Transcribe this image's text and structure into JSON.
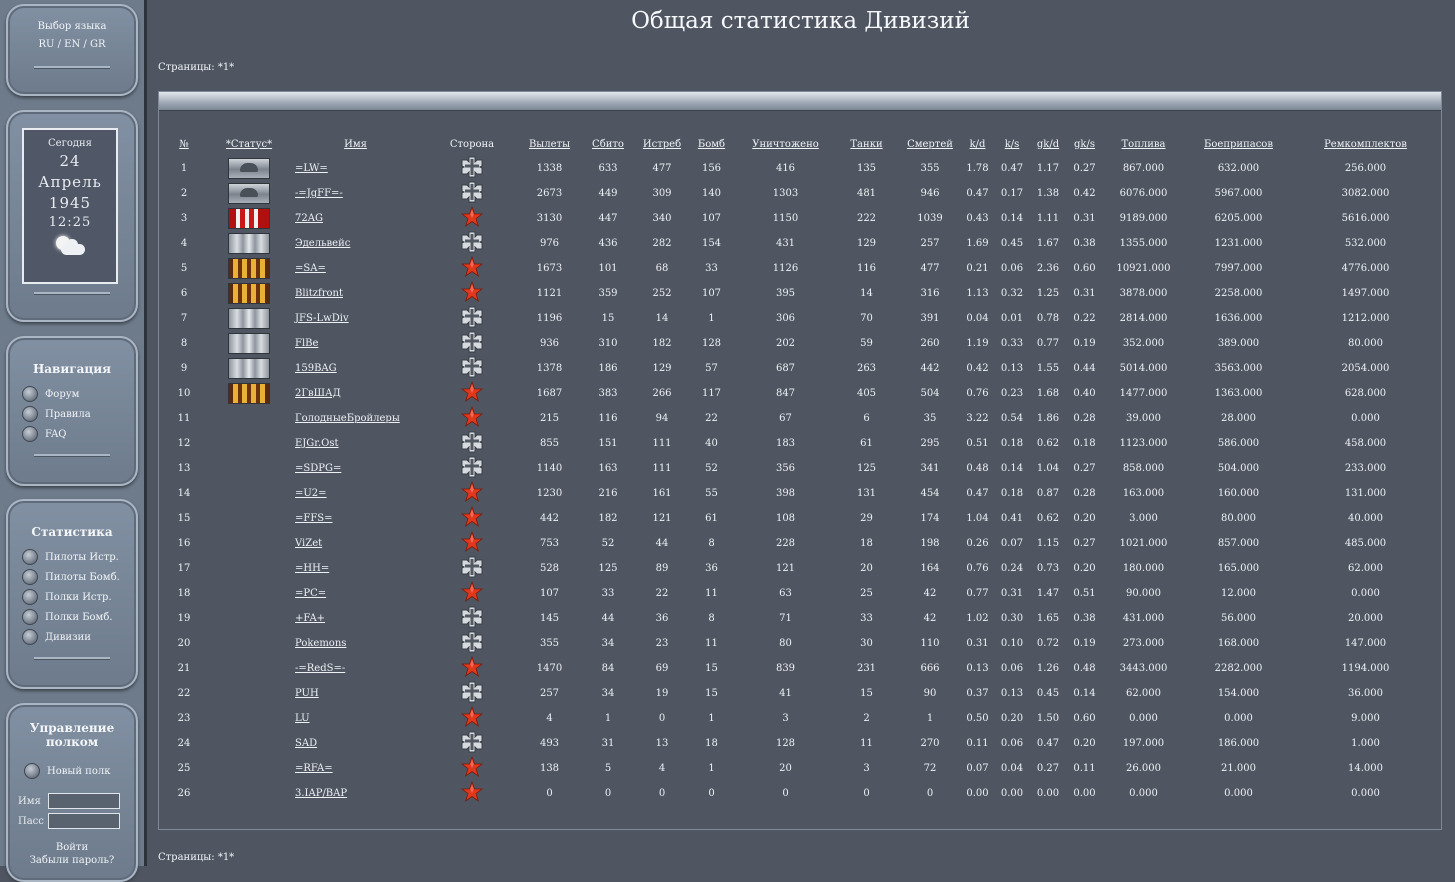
{
  "sidebar": {
    "lang_title": "Выбор языка",
    "lang_links": "RU / EN / GR",
    "today_label": "Сегодня",
    "day": "24",
    "month": "Апрель",
    "year": "1945",
    "time": "12:25",
    "nav_title": "Навигация",
    "nav_items": [
      "Форум",
      "Правила",
      "FAQ"
    ],
    "stats_title": "Статистика",
    "stats_items": [
      "Пилоты Истр.",
      "Пилоты Бомб.",
      "Полки Истр.",
      "Полки Бомб.",
      "Дивизии"
    ],
    "regiment_title": "Управление полком",
    "new_regiment": "Новый полк",
    "login_label": "Имя",
    "pass_label": "Пасс",
    "login_button": "Войти",
    "forgot_link": "Забыли пароль?"
  },
  "page": {
    "title": "Общая статистика Дивизий",
    "pages_top": "Страницы: *1*",
    "pages_bottom": "Страницы: *1*"
  },
  "table": {
    "headers": [
      "№",
      "*Статус*",
      "Имя",
      "Сторона",
      "Вылеты",
      "Сбито",
      "Истреб",
      "Бомб",
      "Уничтожено",
      "Танки",
      "Смертей",
      "k/d",
      "k/s",
      "gk/d",
      "gk/s",
      "Топлива",
      "Боеприпасов",
      "Ремкомплектов"
    ],
    "rows": [
      {
        "n": "1",
        "badge": "eagle",
        "name": "=LW=",
        "side": "cross",
        "sorties": "1338",
        "downed": "633",
        "fighters": "477",
        "bombers": "156",
        "destroyed": "416",
        "tanks": "135",
        "deaths": "355",
        "kd": "1.78",
        "ks": "0.47",
        "gkd": "1.17",
        "gks": "0.27",
        "fuel": "867.000",
        "ammo": "632.000",
        "repair": "256.000"
      },
      {
        "n": "2",
        "badge": "eagle",
        "name": "-=JgFF=-",
        "side": "cross",
        "sorties": "2673",
        "downed": "449",
        "fighters": "309",
        "bombers": "140",
        "destroyed": "1303",
        "tanks": "481",
        "deaths": "946",
        "kd": "0.47",
        "ks": "0.17",
        "gkd": "1.38",
        "gks": "0.42",
        "fuel": "6076.000",
        "ammo": "5967.000",
        "repair": "3082.000"
      },
      {
        "n": "3",
        "badge": "red",
        "name": "72AG",
        "side": "star",
        "sorties": "3130",
        "downed": "447",
        "fighters": "340",
        "bombers": "107",
        "destroyed": "1150",
        "tanks": "222",
        "deaths": "1039",
        "kd": "0.43",
        "ks": "0.14",
        "gkd": "1.11",
        "gks": "0.31",
        "fuel": "9189.000",
        "ammo": "6205.000",
        "repair": "5616.000"
      },
      {
        "n": "4",
        "badge": "silver",
        "name": "Эдельвейс",
        "side": "cross",
        "sorties": "976",
        "downed": "436",
        "fighters": "282",
        "bombers": "154",
        "destroyed": "431",
        "tanks": "129",
        "deaths": "257",
        "kd": "1.69",
        "ks": "0.45",
        "gkd": "1.67",
        "gks": "0.38",
        "fuel": "1355.000",
        "ammo": "1231.000",
        "repair": "532.000"
      },
      {
        "n": "5",
        "badge": "gold",
        "name": "=SA=",
        "side": "star",
        "sorties": "1673",
        "downed": "101",
        "fighters": "68",
        "bombers": "33",
        "destroyed": "1126",
        "tanks": "116",
        "deaths": "477",
        "kd": "0.21",
        "ks": "0.06",
        "gkd": "2.36",
        "gks": "0.60",
        "fuel": "10921.000",
        "ammo": "7997.000",
        "repair": "4776.000"
      },
      {
        "n": "6",
        "badge": "gold",
        "name": "Blitzfront",
        "side": "star",
        "sorties": "1121",
        "downed": "359",
        "fighters": "252",
        "bombers": "107",
        "destroyed": "395",
        "tanks": "14",
        "deaths": "316",
        "kd": "1.13",
        "ks": "0.32",
        "gkd": "1.25",
        "gks": "0.31",
        "fuel": "3878.000",
        "ammo": "2258.000",
        "repair": "1497.000"
      },
      {
        "n": "7",
        "badge": "silver",
        "name": "JFS-LwDiv",
        "side": "cross",
        "sorties": "1196",
        "downed": "15",
        "fighters": "14",
        "bombers": "1",
        "destroyed": "306",
        "tanks": "70",
        "deaths": "391",
        "kd": "0.04",
        "ks": "0.01",
        "gkd": "0.78",
        "gks": "0.22",
        "fuel": "2814.000",
        "ammo": "1636.000",
        "repair": "1212.000"
      },
      {
        "n": "8",
        "badge": "silver",
        "name": "FlBe",
        "side": "cross",
        "sorties": "936",
        "downed": "310",
        "fighters": "182",
        "bombers": "128",
        "destroyed": "202",
        "tanks": "59",
        "deaths": "260",
        "kd": "1.19",
        "ks": "0.33",
        "gkd": "0.77",
        "gks": "0.19",
        "fuel": "352.000",
        "ammo": "389.000",
        "repair": "80.000"
      },
      {
        "n": "9",
        "badge": "silver",
        "name": "159BAG",
        "side": "cross",
        "sorties": "1378",
        "downed": "186",
        "fighters": "129",
        "bombers": "57",
        "destroyed": "687",
        "tanks": "263",
        "deaths": "442",
        "kd": "0.42",
        "ks": "0.13",
        "gkd": "1.55",
        "gks": "0.44",
        "fuel": "5014.000",
        "ammo": "3563.000",
        "repair": "2054.000"
      },
      {
        "n": "10",
        "badge": "gold",
        "name": "2ГвШАД",
        "side": "star",
        "sorties": "1687",
        "downed": "383",
        "fighters": "266",
        "bombers": "117",
        "destroyed": "847",
        "tanks": "405",
        "deaths": "504",
        "kd": "0.76",
        "ks": "0.23",
        "gkd": "1.68",
        "gks": "0.40",
        "fuel": "1477.000",
        "ammo": "1363.000",
        "repair": "628.000"
      },
      {
        "n": "11",
        "badge": "",
        "name": "ГолодныеБройлеры",
        "side": "star",
        "sorties": "215",
        "downed": "116",
        "fighters": "94",
        "bombers": "22",
        "destroyed": "67",
        "tanks": "6",
        "deaths": "35",
        "kd": "3.22",
        "ks": "0.54",
        "gkd": "1.86",
        "gks": "0.28",
        "fuel": "39.000",
        "ammo": "28.000",
        "repair": "0.000"
      },
      {
        "n": "12",
        "badge": "",
        "name": "EJGr.Ost",
        "side": "cross",
        "sorties": "855",
        "downed": "151",
        "fighters": "111",
        "bombers": "40",
        "destroyed": "183",
        "tanks": "61",
        "deaths": "295",
        "kd": "0.51",
        "ks": "0.18",
        "gkd": "0.62",
        "gks": "0.18",
        "fuel": "1123.000",
        "ammo": "586.000",
        "repair": "458.000"
      },
      {
        "n": "13",
        "badge": "",
        "name": "=SDPG=",
        "side": "cross",
        "sorties": "1140",
        "downed": "163",
        "fighters": "111",
        "bombers": "52",
        "destroyed": "356",
        "tanks": "125",
        "deaths": "341",
        "kd": "0.48",
        "ks": "0.14",
        "gkd": "1.04",
        "gks": "0.27",
        "fuel": "858.000",
        "ammo": "504.000",
        "repair": "233.000"
      },
      {
        "n": "14",
        "badge": "",
        "name": "=U2=",
        "side": "star",
        "sorties": "1230",
        "downed": "216",
        "fighters": "161",
        "bombers": "55",
        "destroyed": "398",
        "tanks": "131",
        "deaths": "454",
        "kd": "0.47",
        "ks": "0.18",
        "gkd": "0.87",
        "gks": "0.28",
        "fuel": "163.000",
        "ammo": "160.000",
        "repair": "131.000"
      },
      {
        "n": "15",
        "badge": "",
        "name": "=FFS=",
        "side": "star",
        "sorties": "442",
        "downed": "182",
        "fighters": "121",
        "bombers": "61",
        "destroyed": "108",
        "tanks": "29",
        "deaths": "174",
        "kd": "1.04",
        "ks": "0.41",
        "gkd": "0.62",
        "gks": "0.20",
        "fuel": "3.000",
        "ammo": "80.000",
        "repair": "40.000"
      },
      {
        "n": "16",
        "badge": "",
        "name": "ViZet",
        "side": "star",
        "sorties": "753",
        "downed": "52",
        "fighters": "44",
        "bombers": "8",
        "destroyed": "228",
        "tanks": "18",
        "deaths": "198",
        "kd": "0.26",
        "ks": "0.07",
        "gkd": "1.15",
        "gks": "0.27",
        "fuel": "1021.000",
        "ammo": "857.000",
        "repair": "485.000"
      },
      {
        "n": "17",
        "badge": "",
        "name": "=HH=",
        "side": "cross",
        "sorties": "528",
        "downed": "125",
        "fighters": "89",
        "bombers": "36",
        "destroyed": "121",
        "tanks": "20",
        "deaths": "164",
        "kd": "0.76",
        "ks": "0.24",
        "gkd": "0.73",
        "gks": "0.20",
        "fuel": "180.000",
        "ammo": "165.000",
        "repair": "62.000"
      },
      {
        "n": "18",
        "badge": "",
        "name": "=PC=",
        "side": "star",
        "sorties": "107",
        "downed": "33",
        "fighters": "22",
        "bombers": "11",
        "destroyed": "63",
        "tanks": "25",
        "deaths": "42",
        "kd": "0.77",
        "ks": "0.31",
        "gkd": "1.47",
        "gks": "0.51",
        "fuel": "90.000",
        "ammo": "12.000",
        "repair": "0.000"
      },
      {
        "n": "19",
        "badge": "",
        "name": "+FA+",
        "side": "cross",
        "sorties": "145",
        "downed": "44",
        "fighters": "36",
        "bombers": "8",
        "destroyed": "71",
        "tanks": "33",
        "deaths": "42",
        "kd": "1.02",
        "ks": "0.30",
        "gkd": "1.65",
        "gks": "0.38",
        "fuel": "431.000",
        "ammo": "56.000",
        "repair": "20.000"
      },
      {
        "n": "20",
        "badge": "",
        "name": "Pokemons",
        "side": "cross",
        "sorties": "355",
        "downed": "34",
        "fighters": "23",
        "bombers": "11",
        "destroyed": "80",
        "tanks": "30",
        "deaths": "110",
        "kd": "0.31",
        "ks": "0.10",
        "gkd": "0.72",
        "gks": "0.19",
        "fuel": "273.000",
        "ammo": "168.000",
        "repair": "147.000"
      },
      {
        "n": "21",
        "badge": "",
        "name": "-=RedS=-",
        "side": "star",
        "sorties": "1470",
        "downed": "84",
        "fighters": "69",
        "bombers": "15",
        "destroyed": "839",
        "tanks": "231",
        "deaths": "666",
        "kd": "0.13",
        "ks": "0.06",
        "gkd": "1.26",
        "gks": "0.48",
        "fuel": "3443.000",
        "ammo": "2282.000",
        "repair": "1194.000"
      },
      {
        "n": "22",
        "badge": "",
        "name": "PUH",
        "side": "cross",
        "sorties": "257",
        "downed": "34",
        "fighters": "19",
        "bombers": "15",
        "destroyed": "41",
        "tanks": "15",
        "deaths": "90",
        "kd": "0.37",
        "ks": "0.13",
        "gkd": "0.45",
        "gks": "0.14",
        "fuel": "62.000",
        "ammo": "154.000",
        "repair": "36.000"
      },
      {
        "n": "23",
        "badge": "",
        "name": "LU",
        "side": "star",
        "sorties": "4",
        "downed": "1",
        "fighters": "0",
        "bombers": "1",
        "destroyed": "3",
        "tanks": "2",
        "deaths": "1",
        "kd": "0.50",
        "ks": "0.20",
        "gkd": "1.50",
        "gks": "0.60",
        "fuel": "0.000",
        "ammo": "0.000",
        "repair": "9.000"
      },
      {
        "n": "24",
        "badge": "",
        "name": "SAD",
        "side": "cross",
        "sorties": "493",
        "downed": "31",
        "fighters": "13",
        "bombers": "18",
        "destroyed": "128",
        "tanks": "11",
        "deaths": "270",
        "kd": "0.11",
        "ks": "0.06",
        "gkd": "0.47",
        "gks": "0.20",
        "fuel": "197.000",
        "ammo": "186.000",
        "repair": "1.000"
      },
      {
        "n": "25",
        "badge": "",
        "name": "=RFA=",
        "side": "star",
        "sorties": "138",
        "downed": "5",
        "fighters": "4",
        "bombers": "1",
        "destroyed": "20",
        "tanks": "3",
        "deaths": "72",
        "kd": "0.07",
        "ks": "0.04",
        "gkd": "0.27",
        "gks": "0.11",
        "fuel": "26.000",
        "ammo": "21.000",
        "repair": "14.000"
      },
      {
        "n": "26",
        "badge": "",
        "name": "3.IAP/BAP",
        "side": "star",
        "sorties": "0",
        "downed": "0",
        "fighters": "0",
        "bombers": "0",
        "destroyed": "0",
        "tanks": "0",
        "deaths": "0",
        "kd": "0.00",
        "ks": "0.00",
        "gkd": "0.00",
        "gks": "0.00",
        "fuel": "0.000",
        "ammo": "0.000",
        "repair": "0.000"
      }
    ]
  },
  "icons": {
    "cross": "iron-cross-icon",
    "star": "red-star-icon",
    "weather": "sun-cloud-icon"
  },
  "colors": {
    "background": "#4f5662",
    "sidebar": "#6e7b8b",
    "star": "#e0381d"
  }
}
